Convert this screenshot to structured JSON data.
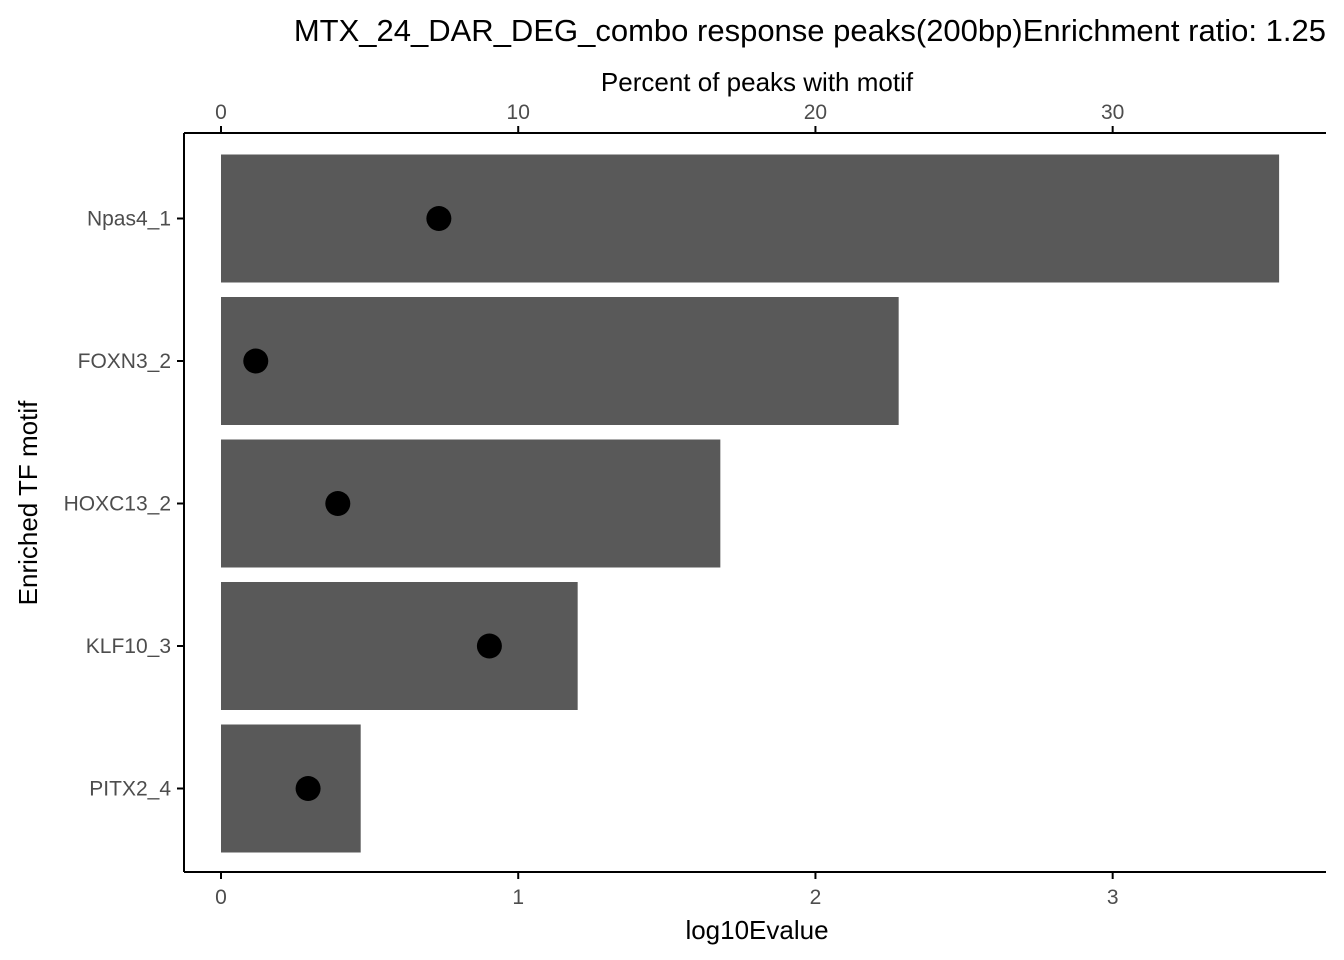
{
  "chart_data": {
    "type": "bar",
    "title": "MTX_24_DAR_DEG_combo response peaks(200bp)Enrichment ratio: 1.25",
    "xlabel": "log10Evalue",
    "x2label": "Percent of peaks with motif",
    "ylabel": "Enriched TF motif",
    "categories": [
      "Npas4_1",
      "FOXN3_2",
      "HOXC13_2",
      "KLF10_3",
      "PITX2_4"
    ],
    "series": [
      {
        "values": [
          3.56,
          2.28,
          1.68,
          1.2,
          0.47
        ]
      },
      {
        "values": [
          7.33,
          1.17,
          3.93,
          9.03,
          2.93
        ]
      }
    ],
    "xlim": [
      0,
      3.6
    ],
    "x_ticks": [
      "0",
      "1",
      "2",
      "3"
    ],
    "x2lim": [
      0,
      36
    ],
    "x2_ticks": [
      "0",
      "10",
      "20",
      "30"
    ],
    "grid": false,
    "legend": "none",
    "colors": {
      "bar": "#595959",
      "point": "#000000",
      "axis": "#000000",
      "tick_text": "#4d4d4d"
    }
  }
}
